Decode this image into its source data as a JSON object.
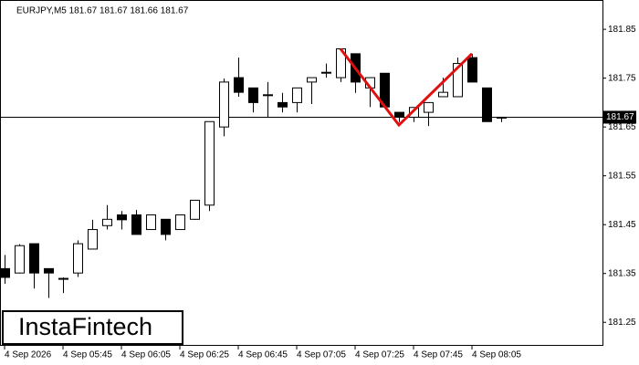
{
  "chart_data": {
    "type": "candlestick",
    "header": "EURJPY,M5  181.67 181.67 181.66 181.67",
    "logo": "InstaFintech",
    "categories": [
      "4 Sep 2026",
      null,
      null,
      null,
      "4 Sep 05:45",
      null,
      null,
      null,
      "4 Sep 06:05",
      null,
      null,
      null,
      "4 Sep 06:25",
      null,
      null,
      null,
      "4 Sep 06:45",
      null,
      null,
      null,
      "4 Sep 07:05",
      null,
      null,
      null,
      "4 Sep 07:25",
      null,
      null,
      null,
      "4 Sep 07:45",
      null,
      null,
      null,
      "4 Sep 08:05",
      null,
      null
    ],
    "open": [
      181.36,
      181.351,
      181.411,
      181.36,
      181.34,
      181.351,
      181.4,
      181.448,
      181.47,
      181.47,
      181.44,
      181.461,
      181.44,
      181.461,
      181.49,
      181.65,
      181.751,
      181.73,
      181.716,
      181.7,
      181.7,
      181.742,
      181.762,
      181.751,
      181.8,
      181.73,
      181.76,
      181.68,
      181.67,
      181.68,
      181.712,
      181.712,
      181.792,
      181.73,
      181.67
    ],
    "high": [
      181.388,
      181.41,
      181.411,
      181.36,
      181.342,
      181.418,
      181.46,
      181.49,
      181.478,
      181.48,
      181.47,
      181.461,
      181.47,
      181.5,
      181.661,
      181.749,
      181.792,
      181.73,
      181.742,
      181.72,
      181.73,
      181.751,
      181.78,
      181.81,
      181.8,
      181.751,
      181.76,
      181.68,
      181.69,
      181.7,
      181.751,
      181.792,
      181.8,
      181.73,
      181.67
    ],
    "low": [
      181.329,
      181.35,
      181.319,
      181.3,
      181.31,
      181.343,
      181.4,
      181.44,
      181.44,
      181.43,
      181.44,
      181.418,
      181.44,
      181.46,
      181.478,
      181.631,
      181.712,
      181.68,
      181.67,
      181.68,
      181.68,
      181.697,
      181.751,
      181.742,
      181.72,
      181.691,
      181.691,
      181.66,
      181.66,
      181.652,
      181.712,
      181.712,
      181.742,
      181.661,
      181.66
    ],
    "close": [
      181.342,
      181.407,
      181.351,
      181.351,
      181.34,
      181.411,
      181.44,
      181.461,
      181.46,
      181.43,
      181.47,
      181.43,
      181.47,
      181.5,
      181.661,
      181.742,
      181.721,
      181.7,
      181.716,
      181.691,
      181.73,
      181.751,
      181.762,
      181.81,
      181.742,
      181.751,
      181.691,
      181.67,
      181.69,
      181.7,
      181.721,
      181.78,
      181.742,
      181.661,
      181.67
    ],
    "up_color": "#ffffff",
    "down_color": "#000000",
    "ylim": [
      181.2,
      181.91
    ],
    "yticks": [
      181.25,
      181.35,
      181.45,
      181.55,
      181.65,
      181.75,
      181.85
    ],
    "current_price": {
      "value": 181.67,
      "label": "181.67"
    },
    "pattern": {
      "color": "#e01010",
      "index": [
        23,
        27,
        32
      ],
      "values": [
        181.81,
        181.654,
        181.8
      ]
    }
  }
}
